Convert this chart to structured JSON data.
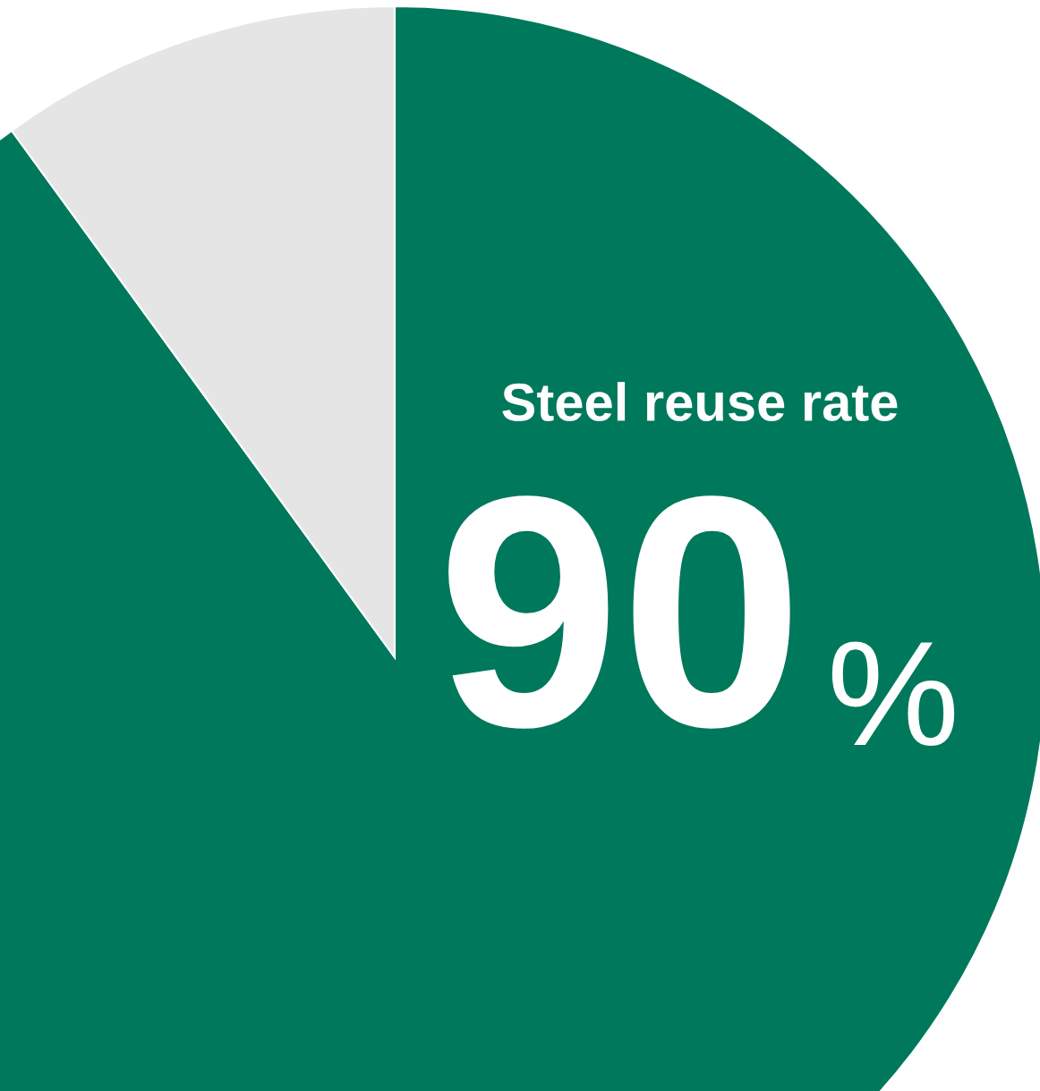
{
  "chart_data": {
    "type": "pie",
    "categories": [
      "Steel reuse rate",
      null
    ],
    "values": [
      90,
      10
    ],
    "colors": [
      "#00785c",
      "#e5e5e5"
    ],
    "value_labels": [
      "90%",
      null
    ]
  }
}
